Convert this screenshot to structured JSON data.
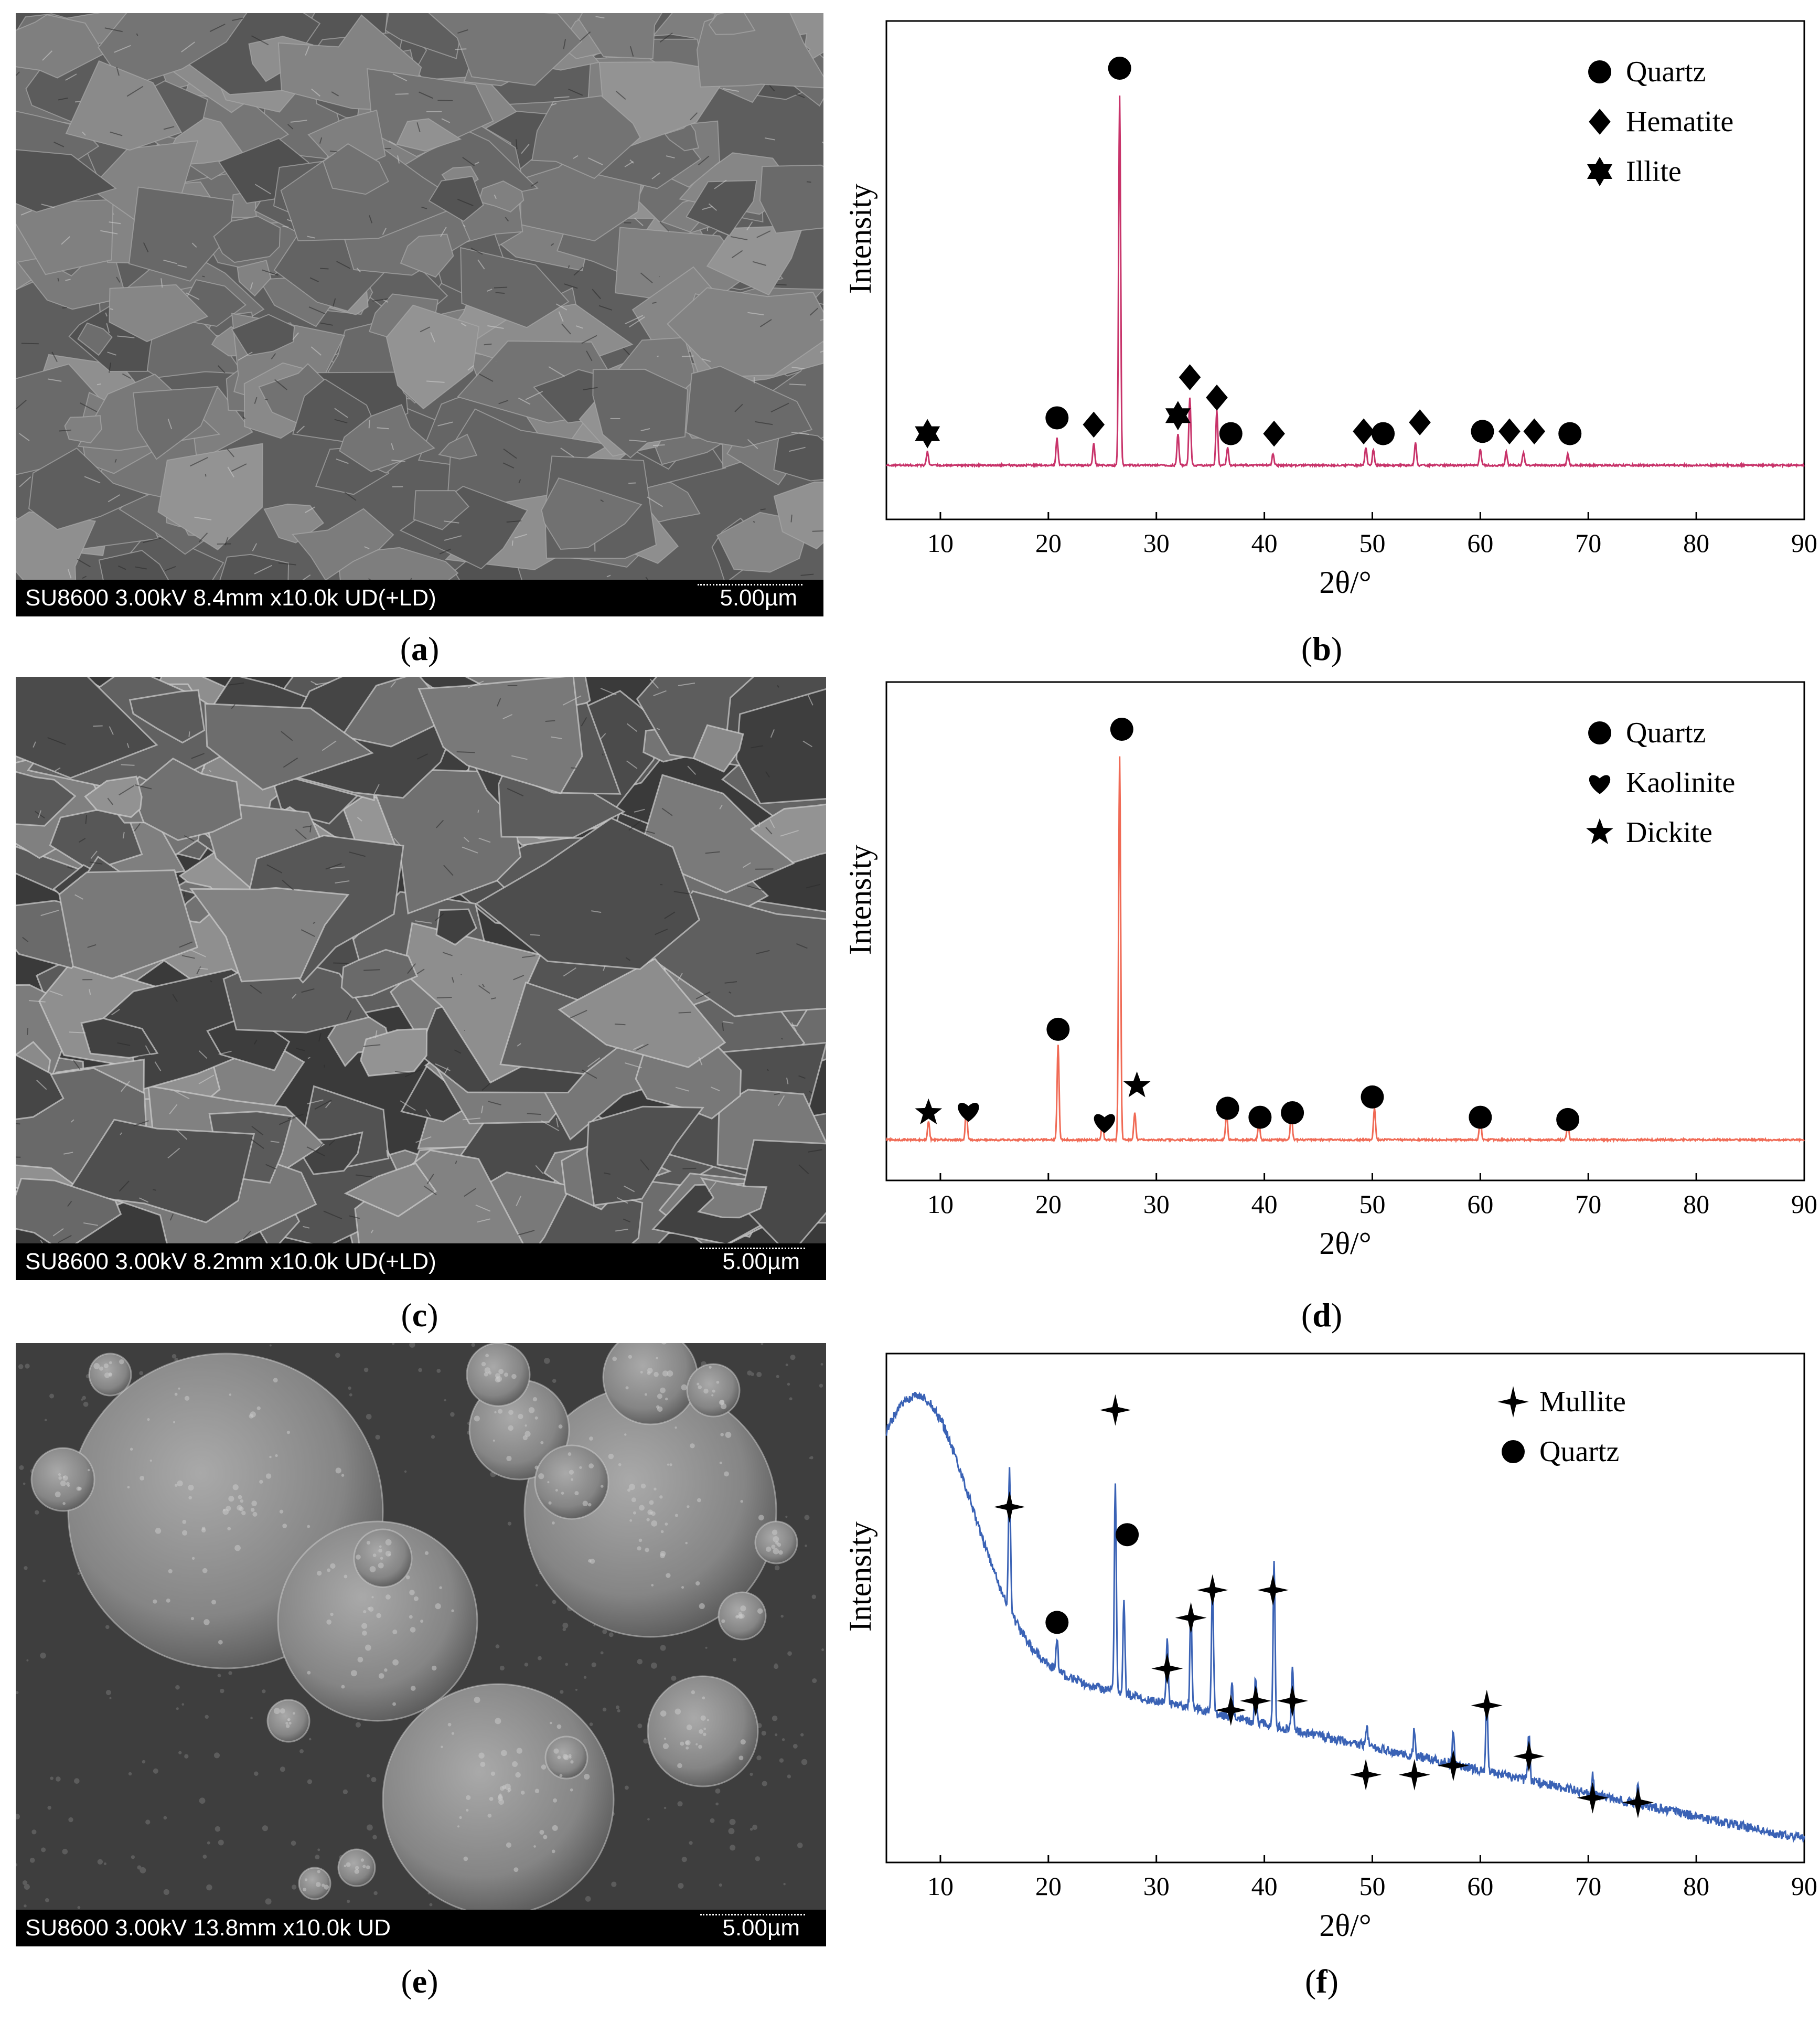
{
  "panels": [
    {
      "id": "a",
      "sem": "SU8600 3.00kV 8.4mm x10.0k UD(+LD)",
      "scale": "5.00µm",
      "caption": "a",
      "style": "plates"
    },
    {
      "id": "c",
      "sem": "SU8600 3.00kV 8.2mm x10.0k UD(+LD)",
      "scale": "5.00µm",
      "caption": "c",
      "style": "flakes"
    },
    {
      "id": "e",
      "sem": "SU8600 3.00kV 13.8mm x10.0k UD",
      "scale": "5.00µm",
      "caption": "e",
      "style": "spheres"
    }
  ],
  "captions": {
    "b": "b",
    "d": "d",
    "f": "f"
  },
  "chart_data": [
    {
      "id": "b",
      "type": "line",
      "color": "#c8336a",
      "xlabel": "2θ/°",
      "ylabel": "Intensity",
      "xlim": [
        5,
        90
      ],
      "xticks": [
        10,
        20,
        30,
        40,
        50,
        60,
        70,
        80,
        90
      ],
      "baseline": 0.12,
      "peaks": [
        [
          8.8,
          0.03
        ],
        [
          20.8,
          0.06
        ],
        [
          24.2,
          0.05
        ],
        [
          26.6,
          0.82
        ],
        [
          32.0,
          0.07
        ],
        [
          33.1,
          0.15
        ],
        [
          35.6,
          0.12
        ],
        [
          36.6,
          0.04
        ],
        [
          40.8,
          0.025
        ],
        [
          49.4,
          0.04
        ],
        [
          50.1,
          0.035
        ],
        [
          54.0,
          0.05
        ],
        [
          60.0,
          0.035
        ],
        [
          62.4,
          0.03
        ],
        [
          64.0,
          0.03
        ],
        [
          68.1,
          0.025
        ]
      ],
      "markers": [
        {
          "x": 8.8,
          "y": 0.19,
          "m": "hexstar"
        },
        {
          "x": 20.8,
          "y": 0.225,
          "m": "circle"
        },
        {
          "x": 24.2,
          "y": 0.21,
          "m": "diamond"
        },
        {
          "x": 26.6,
          "y": 1.0,
          "m": "circle"
        },
        {
          "x": 32.0,
          "y": 0.23,
          "m": "hexstar"
        },
        {
          "x": 33.1,
          "y": 0.315,
          "m": "diamond"
        },
        {
          "x": 35.6,
          "y": 0.27,
          "m": "diamond"
        },
        {
          "x": 36.9,
          "y": 0.19,
          "m": "circle"
        },
        {
          "x": 40.9,
          "y": 0.19,
          "m": "diamond"
        },
        {
          "x": 49.2,
          "y": 0.195,
          "m": "diamond"
        },
        {
          "x": 51.0,
          "y": 0.19,
          "m": "circle"
        },
        {
          "x": 54.4,
          "y": 0.215,
          "m": "diamond"
        },
        {
          "x": 60.2,
          "y": 0.195,
          "m": "circle"
        },
        {
          "x": 62.7,
          "y": 0.195,
          "m": "diamond"
        },
        {
          "x": 65.0,
          "y": 0.195,
          "m": "diamond"
        },
        {
          "x": 68.3,
          "y": 0.19,
          "m": "circle"
        }
      ],
      "legend": [
        {
          "m": "circle",
          "label": "Quartz"
        },
        {
          "m": "diamond",
          "label": "Hematite"
        },
        {
          "m": "hexstar",
          "label": "Illite"
        }
      ]
    },
    {
      "id": "d",
      "type": "line",
      "color": "#f06a55",
      "xlabel": "2θ/°",
      "ylabel": "Intensity",
      "xlim": [
        5,
        90
      ],
      "xticks": [
        10,
        20,
        30,
        40,
        50,
        60,
        70,
        80,
        90
      ],
      "baseline": 0.09,
      "peaks": [
        [
          8.9,
          0.04
        ],
        [
          12.4,
          0.07
        ],
        [
          20.9,
          0.21
        ],
        [
          25.0,
          0.04
        ],
        [
          26.6,
          0.85
        ],
        [
          28.0,
          0.06
        ],
        [
          36.5,
          0.06
        ],
        [
          39.5,
          0.04
        ],
        [
          42.5,
          0.06
        ],
        [
          50.2,
          0.07
        ],
        [
          60.0,
          0.05
        ],
        [
          68.1,
          0.04
        ]
      ],
      "markers": [
        {
          "x": 8.9,
          "y": 0.15,
          "m": "star"
        },
        {
          "x": 12.6,
          "y": 0.155,
          "m": "heart"
        },
        {
          "x": 20.9,
          "y": 0.335,
          "m": "circle"
        },
        {
          "x": 25.2,
          "y": 0.13,
          "m": "heart"
        },
        {
          "x": 26.8,
          "y": 1.0,
          "m": "circle"
        },
        {
          "x": 28.2,
          "y": 0.21,
          "m": "star"
        },
        {
          "x": 36.6,
          "y": 0.16,
          "m": "circle"
        },
        {
          "x": 39.6,
          "y": 0.14,
          "m": "circle"
        },
        {
          "x": 42.6,
          "y": 0.15,
          "m": "circle"
        },
        {
          "x": 50.0,
          "y": 0.185,
          "m": "circle"
        },
        {
          "x": 60.0,
          "y": 0.14,
          "m": "circle"
        },
        {
          "x": 68.1,
          "y": 0.135,
          "m": "circle"
        }
      ],
      "legend": [
        {
          "m": "circle",
          "label": "Quartz"
        },
        {
          "m": "heart",
          "label": "Kaolinite"
        },
        {
          "m": "star",
          "label": "Dickite"
        }
      ]
    },
    {
      "id": "f",
      "type": "line",
      "color": "#3a62b5",
      "xlabel": "2θ/°",
      "ylabel": "Intensity",
      "xlim": [
        5,
        90
      ],
      "xticks": [
        10,
        20,
        30,
        40,
        50,
        60,
        70,
        80,
        90
      ],
      "baseline": 0.0,
      "peaks": [
        [
          16.4,
          0.31
        ],
        [
          20.8,
          0.07
        ],
        [
          26.2,
          0.45
        ],
        [
          27.0,
          0.2
        ],
        [
          31.0,
          0.14
        ],
        [
          33.2,
          0.22
        ],
        [
          35.2,
          0.28
        ],
        [
          37.0,
          0.08
        ],
        [
          39.2,
          0.1
        ],
        [
          40.9,
          0.36
        ],
        [
          42.6,
          0.14
        ],
        [
          49.5,
          0.04
        ],
        [
          53.9,
          0.06
        ],
        [
          57.5,
          0.07
        ],
        [
          60.6,
          0.17
        ],
        [
          64.5,
          0.1
        ],
        [
          70.4,
          0.04
        ],
        [
          74.6,
          0.04
        ]
      ],
      "markers": [
        {
          "x": 16.4,
          "y": 0.77,
          "m": "sparkle"
        },
        {
          "x": 20.8,
          "y": 0.52,
          "m": "circle"
        },
        {
          "x": 26.2,
          "y": 0.98,
          "m": "sparkle"
        },
        {
          "x": 27.3,
          "y": 0.71,
          "m": "circle"
        },
        {
          "x": 31.0,
          "y": 0.42,
          "m": "sparkle"
        },
        {
          "x": 33.2,
          "y": 0.53,
          "m": "sparkle"
        },
        {
          "x": 35.2,
          "y": 0.59,
          "m": "sparkle"
        },
        {
          "x": 36.9,
          "y": 0.33,
          "m": "sparkle"
        },
        {
          "x": 39.2,
          "y": 0.35,
          "m": "sparkle"
        },
        {
          "x": 40.8,
          "y": 0.59,
          "m": "sparkle"
        },
        {
          "x": 42.6,
          "y": 0.35,
          "m": "sparkle"
        },
        {
          "x": 49.4,
          "y": 0.19,
          "m": "sparkle"
        },
        {
          "x": 53.9,
          "y": 0.19,
          "m": "sparkle"
        },
        {
          "x": 57.5,
          "y": 0.21,
          "m": "sparkle"
        },
        {
          "x": 60.6,
          "y": 0.34,
          "m": "sparkle"
        },
        {
          "x": 64.5,
          "y": 0.23,
          "m": "sparkle"
        },
        {
          "x": 70.4,
          "y": 0.14,
          "m": "sparkle"
        },
        {
          "x": 74.6,
          "y": 0.13,
          "m": "sparkle"
        }
      ],
      "legend": [
        {
          "m": "sparkle",
          "label": "Mullite"
        },
        {
          "m": "circle",
          "label": "Quartz"
        }
      ]
    }
  ]
}
